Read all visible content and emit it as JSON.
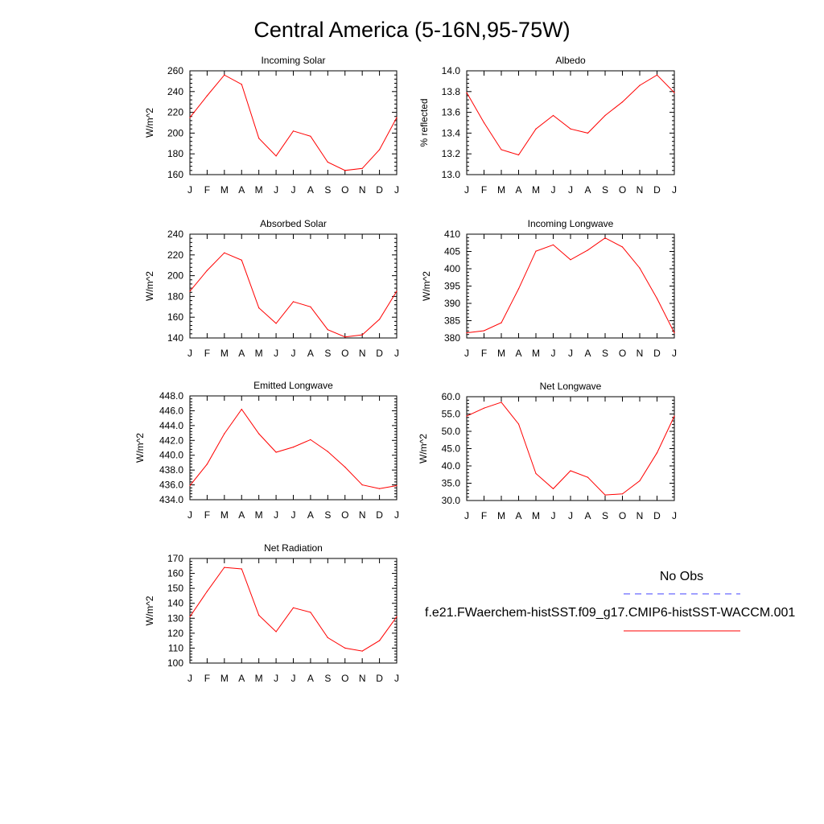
{
  "title": "Central America (5-16N,95-75W)",
  "colors": {
    "model": "#ff0000",
    "obs": "#4040ff"
  },
  "chart_data": [
    {
      "type": "line",
      "title": "Incoming Solar",
      "ylabel": "W/m^2",
      "categories": [
        "J",
        "F",
        "M",
        "A",
        "M",
        "J",
        "J",
        "A",
        "S",
        "O",
        "N",
        "D",
        "J"
      ],
      "ylim": [
        160,
        260
      ],
      "yticks": [
        "260",
        "240",
        "220",
        "200",
        "180",
        "160"
      ],
      "series": [
        {
          "values": [
            215,
            236,
            256,
            247,
            195,
            178,
            202,
            197,
            172,
            164,
            166,
            184,
            215
          ]
        }
      ]
    },
    {
      "type": "line",
      "title": "Albedo",
      "ylabel": "% reflected",
      "categories": [
        "J",
        "F",
        "M",
        "A",
        "M",
        "J",
        "J",
        "A",
        "S",
        "O",
        "N",
        "D",
        "J"
      ],
      "ylim": [
        13.0,
        14.0
      ],
      "yticks": [
        "14.0",
        "13.8",
        "13.6",
        "13.4",
        "13.2",
        "13.0"
      ],
      "series": [
        {
          "values": [
            13.79,
            13.5,
            13.24,
            13.19,
            13.44,
            13.57,
            13.44,
            13.4,
            13.57,
            13.7,
            13.86,
            13.96,
            13.79
          ]
        }
      ]
    },
    {
      "type": "line",
      "title": "Absorbed Solar",
      "ylabel": "W/m^2",
      "categories": [
        "J",
        "F",
        "M",
        "A",
        "M",
        "J",
        "J",
        "A",
        "S",
        "O",
        "N",
        "D",
        "J"
      ],
      "ylim": [
        140,
        240
      ],
      "yticks": [
        "240",
        "220",
        "200",
        "180",
        "160",
        "140"
      ],
      "series": [
        {
          "values": [
            185,
            205,
            222,
            215,
            169,
            154,
            175,
            170,
            148,
            141,
            143,
            158,
            185
          ]
        }
      ]
    },
    {
      "type": "line",
      "title": "Incoming Longwave",
      "ylabel": "W/m^2",
      "categories": [
        "J",
        "F",
        "M",
        "A",
        "M",
        "J",
        "J",
        "A",
        "S",
        "O",
        "N",
        "D",
        "J"
      ],
      "ylim": [
        380,
        410
      ],
      "yticks": [
        "410",
        "405",
        "400",
        "395",
        "390",
        "385",
        "380"
      ],
      "series": [
        {
          "values": [
            381.5,
            382.1,
            384.4,
            394.2,
            405.1,
            406.9,
            402.6,
            405.4,
            408.9,
            406.3,
            400.2,
            391.4,
            381.5
          ]
        }
      ]
    },
    {
      "type": "line",
      "title": "Emitted Longwave",
      "ylabel": "W/m^2",
      "categories": [
        "J",
        "F",
        "M",
        "A",
        "M",
        "J",
        "J",
        "A",
        "S",
        "O",
        "N",
        "D",
        "J"
      ],
      "ylim": [
        434.0,
        448.0
      ],
      "yticks": [
        "448.0",
        "446.0",
        "444.0",
        "442.0",
        "440.0",
        "438.0",
        "436.0",
        "434.0"
      ],
      "series": [
        {
          "values": [
            435.9,
            438.8,
            442.9,
            446.2,
            442.9,
            440.4,
            441.1,
            442.1,
            440.5,
            438.4,
            436.0,
            435.5,
            435.9
          ]
        }
      ]
    },
    {
      "type": "line",
      "title": "Net Longwave",
      "ylabel": "W/m^2",
      "categories": [
        "J",
        "F",
        "M",
        "A",
        "M",
        "J",
        "J",
        "A",
        "S",
        "O",
        "N",
        "D",
        "J"
      ],
      "ylim": [
        30.0,
        60.0
      ],
      "yticks": [
        "60.0",
        "55.0",
        "50.0",
        "45.0",
        "40.0",
        "35.0",
        "30.0"
      ],
      "series": [
        {
          "values": [
            54.4,
            56.7,
            58.4,
            52.1,
            37.8,
            33.4,
            38.6,
            36.7,
            31.6,
            31.9,
            35.7,
            43.8,
            54.4
          ]
        }
      ]
    },
    {
      "type": "line",
      "title": "Net Radiation",
      "ylabel": "W/m^2",
      "categories": [
        "J",
        "F",
        "M",
        "A",
        "M",
        "J",
        "J",
        "A",
        "S",
        "O",
        "N",
        "D",
        "J"
      ],
      "ylim": [
        100,
        170
      ],
      "yticks": [
        "170",
        "160",
        "150",
        "140",
        "130",
        "120",
        "110",
        "100"
      ],
      "series": [
        {
          "values": [
            131,
            148,
            164,
            163,
            132,
            121,
            137,
            134,
            117,
            110,
            108,
            115,
            131
          ]
        }
      ]
    }
  ],
  "legend": {
    "obs_label": "No Obs",
    "model_label": "f.e21.FWaerchem-histSST.f09_g17.CMIP6-histSST-WACCM.001"
  }
}
